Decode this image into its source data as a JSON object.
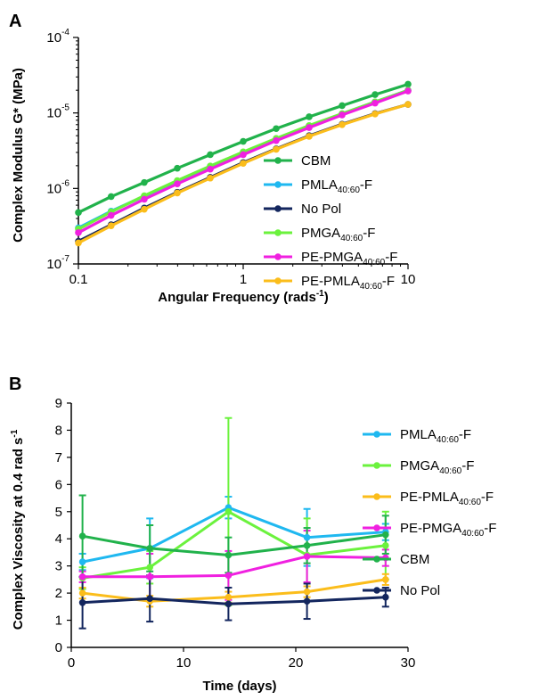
{
  "chart_data": [
    {
      "panel": "A",
      "type": "line",
      "scale": "log-log",
      "xlabel": "Angular Frequency (rads",
      "xlabel_sup": "-1",
      "xlabel_end": ")",
      "ylabel": "Complex Modulus G* (MPa)",
      "xlim": [
        0.1,
        10
      ],
      "ylim": [
        1e-07,
        0.0001
      ],
      "x_tick_labels": [
        "0.1",
        "1",
        "10"
      ],
      "y_tick_labels": [
        {
          "base": "10",
          "exp": "-7"
        },
        {
          "base": "10",
          "exp": "-6"
        },
        {
          "base": "10",
          "exp": "-5"
        },
        {
          "base": "10",
          "exp": "-4"
        }
      ],
      "legend_position": "right",
      "x": [
        0.1,
        0.158,
        0.251,
        0.398,
        0.631,
        1.0,
        1.585,
        2.512,
        3.981,
        6.31,
        10.0
      ],
      "series": [
        {
          "name": "CBM",
          "sub": "",
          "suffix": "",
          "color": "#21b24b",
          "values": [
            4.8e-07,
            7.8e-07,
            1.2e-06,
            1.85e-06,
            2.8e-06,
            4.2e-06,
            6.2e-06,
            8.9e-06,
            1.25e-05,
            1.75e-05,
            2.4e-05
          ]
        },
        {
          "name": "PMLA",
          "sub": "40:60",
          "suffix": "-F",
          "color": "#1fb8f0",
          "values": [
            3e-07,
            5e-07,
            7.9e-07,
            1.25e-06,
            1.95e-06,
            3e-06,
            4.5e-06,
            6.7e-06,
            9.7e-06,
            1.4e-05,
            2e-05
          ]
        },
        {
          "name": "No Pol",
          "sub": "",
          "suffix": "",
          "color": "#13265e",
          "values": [
            2e-07,
            3.3e-07,
            5.5e-07,
            8.9e-07,
            1.4e-06,
            2.2e-06,
            3.35e-06,
            5e-06,
            7.1e-06,
            9.8e-06,
            1.3e-05
          ]
        },
        {
          "name": "PMGA",
          "sub": "40:60",
          "suffix": "-F",
          "color": "#6bf23d",
          "values": [
            2.9e-07,
            4.9e-07,
            8e-07,
            1.27e-06,
            1.98e-06,
            3.05e-06,
            4.6e-06,
            6.8e-06,
            9.8e-06,
            1.4e-05,
            2e-05
          ]
        },
        {
          "name": "PE-PMGA",
          "sub": "40:60",
          "suffix": "-F",
          "color": "#f020e0",
          "values": [
            2.6e-07,
            4.4e-07,
            7.2e-07,
            1.15e-06,
            1.8e-06,
            2.8e-06,
            4.3e-06,
            6.4e-06,
            9.4e-06,
            1.35e-05,
            1.95e-05
          ]
        },
        {
          "name": "PE-PMLA",
          "sub": "40:60",
          "suffix": "-F",
          "color": "#fbbd1b",
          "values": [
            1.9e-07,
            3.2e-07,
            5.3e-07,
            8.7e-07,
            1.37e-06,
            2.15e-06,
            3.3e-06,
            4.9e-06,
            7e-06,
            9.7e-06,
            1.3e-05
          ]
        }
      ]
    },
    {
      "panel": "B",
      "type": "line",
      "xlabel": "Time (days)",
      "ylabel": "Complex Viscosity at 0.4 rad s",
      "ylabel_sup": "-1",
      "xlim": [
        0,
        30
      ],
      "ylim": [
        0,
        9
      ],
      "x_tick_labels": [
        "0",
        "10",
        "20",
        "30"
      ],
      "y_tick_labels": [
        "0",
        "1",
        "2",
        "3",
        "4",
        "5",
        "6",
        "7",
        "8",
        "9"
      ],
      "legend_position": "right",
      "x": [
        1,
        7,
        14,
        21,
        28
      ],
      "series": [
        {
          "name": "PMLA",
          "sub": "40:60",
          "suffix": "-F",
          "color": "#1fb8f0",
          "values": [
            3.15,
            3.65,
            5.15,
            4.05,
            4.25
          ],
          "errors": [
            0.3,
            1.1,
            0.4,
            1.05,
            0.3
          ]
        },
        {
          "name": "PMGA",
          "sub": "40:60",
          "suffix": "-F",
          "color": "#6bf23d",
          "values": [
            2.55,
            2.95,
            5.0,
            3.4,
            3.75
          ],
          "errors": [
            0.4,
            0.6,
            3.45,
            1.35,
            1.25
          ]
        },
        {
          "name": "PE-PMLA",
          "sub": "40:60",
          "suffix": "-F",
          "color": "#fbbd1b",
          "values": [
            2.0,
            1.7,
            1.85,
            2.05,
            2.5
          ],
          "errors": [
            0.2,
            0.2,
            0.2,
            0.2,
            0.2
          ]
        },
        {
          "name": "PE-PMGA",
          "sub": "40:60",
          "suffix": "-F",
          "color": "#f020e0",
          "values": [
            2.6,
            2.6,
            2.65,
            3.35,
            3.3
          ],
          "errors": [
            0.2,
            0.85,
            0.9,
            0.95,
            0.3
          ]
        },
        {
          "name": "CBM",
          "sub": "",
          "suffix": "",
          "color": "#21b24b",
          "values": [
            4.1,
            3.65,
            3.4,
            3.75,
            4.15
          ],
          "errors": [
            1.5,
            0.85,
            0.65,
            0.65,
            0.7
          ]
        },
        {
          "name": "No Pol",
          "sub": "",
          "suffix": "",
          "color": "#13265e",
          "values": [
            1.65,
            1.8,
            1.6,
            1.7,
            1.85
          ],
          "errors": [
            0.95,
            0.85,
            0.6,
            0.65,
            0.35
          ]
        }
      ]
    }
  ]
}
